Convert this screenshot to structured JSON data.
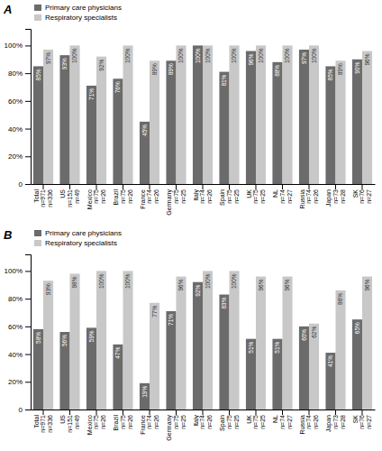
{
  "chart_data": [
    {
      "type": "bar",
      "title": "A",
      "categories": [
        "Total\nn=971\nn=336",
        "US\nn=151\nn=49",
        "Mexico\nn=75\nn=26",
        "Brazil\nn=75\nn=26",
        "France\nn=74\nn=26",
        "Germany\nn=75\nn=25",
        "Italy\nn=74\nn=26",
        "Spain\nn=75\nn=25",
        "UK\nn=75\nn=25",
        "NL\nn=74\nn=27",
        "Russia\nn=74\nn=26",
        "Japan\nn=73\nn=28",
        "SK\nn=76\nn=27"
      ],
      "series": [
        {
          "name": "Primary care physicians",
          "color": "#6b6b6b",
          "values": [
            85,
            93,
            71,
            76,
            45,
            89,
            100,
            81,
            96,
            88,
            97,
            85,
            90
          ],
          "value_labels": [
            "85%",
            "93%",
            "71%",
            "76%",
            "45%",
            "89%",
            "100%",
            "81%",
            "96%",
            "88%",
            "97%",
            "85%",
            "90%"
          ]
        },
        {
          "name": "Respiratory specialists",
          "color": "#c8c8c8",
          "values": [
            97,
            100,
            92,
            100,
            89,
            100,
            100,
            100,
            100,
            100,
            100,
            89,
            96
          ],
          "value_labels": [
            "97%",
            "100%",
            "92%",
            "100%",
            "89%",
            "100%",
            "100%",
            "100%",
            "100%",
            "100%",
            "100%",
            "89%",
            "96%"
          ]
        }
      ],
      "ylim": [
        0,
        112
      ],
      "yticks": [
        0,
        {
          "value": 20,
          "label": "20%"
        },
        {
          "value": 40,
          "label": "40%"
        },
        {
          "value": 60,
          "label": "60%"
        },
        {
          "value": 80,
          "label": "80%"
        },
        {
          "value": 100,
          "label": "100%"
        }
      ],
      "legend": "top-left",
      "data_labels": true,
      "grid": false
    },
    {
      "type": "bar",
      "title": "B",
      "categories": [
        "Total\nn=971\nn=336",
        "US\nn=151\nn=49",
        "Mexico\nn=75\nn=26",
        "Brazil\nn=75\nn=26",
        "France\nn=74\nn=26",
        "Germany\nn=75\nn=25",
        "Italy\nn=74\nn=26",
        "Spain\nn=75\nn=25",
        "UK\nn=75\nn=25",
        "NL\nn=74\nn=27",
        "Russia\nn=74\nn=26",
        "Japan\nn=73\nn=28",
        "SK\nn=76\nn=27"
      ],
      "series": [
        {
          "name": "Primary care physicians",
          "color": "#6b6b6b",
          "values": [
            58,
            56,
            59,
            47,
            19,
            71,
            92,
            83,
            51,
            51,
            60,
            41,
            65
          ],
          "value_labels": [
            "58%",
            "56%",
            "59%",
            "47%",
            "19%",
            "71%",
            "92%",
            "83%",
            "51%",
            "51%",
            "60%",
            "41%",
            "65%"
          ]
        },
        {
          "name": "Respiratory specialists",
          "color": "#c8c8c8",
          "values": [
            93,
            98,
            100,
            100,
            77,
            96,
            100,
            100,
            96,
            96,
            62,
            86,
            96
          ],
          "value_labels": [
            "93%",
            "98%",
            "100%",
            "100%",
            "77%",
            "96%",
            "100%",
            "100%",
            "96%",
            "96%",
            "62%",
            "86%",
            "96%"
          ]
        }
      ],
      "ylim": [
        0,
        112
      ],
      "yticks": [
        0,
        {
          "value": 20,
          "label": "20%"
        },
        {
          "value": 40,
          "label": "40%"
        },
        {
          "value": 60,
          "label": "60%"
        },
        {
          "value": 80,
          "label": "80%"
        },
        {
          "value": 100,
          "label": "100%"
        }
      ],
      "legend": "top-left",
      "data_labels": true,
      "grid": false
    }
  ]
}
